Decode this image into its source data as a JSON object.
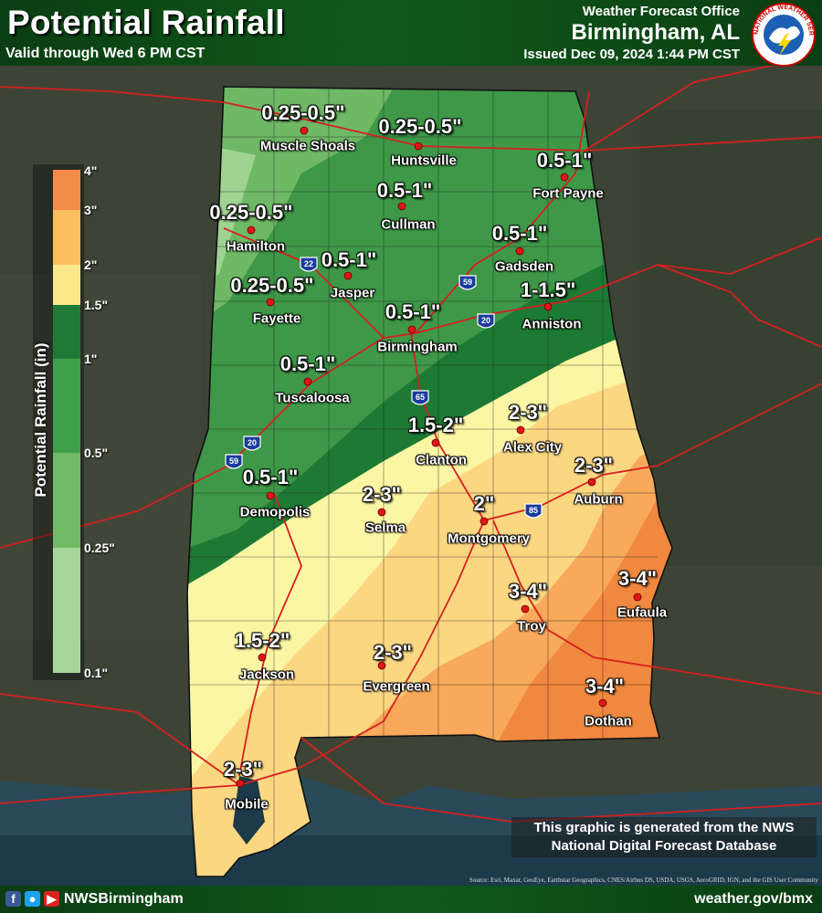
{
  "header": {
    "title": "Potential Rainfall",
    "valid": "Valid through Wed 6 PM CST",
    "office_label": "Weather Forecast Office",
    "office": "Birmingham, AL",
    "issued": "Issued Dec 09, 2024 1:44 PM CST"
  },
  "legend": {
    "title": "Potential Rainfall (in)",
    "ticks": [
      "4\"",
      "3\"",
      "2\"",
      "1.5\"",
      "1\"",
      "0.5\"",
      "0.25\"",
      "0.1\""
    ],
    "colors": [
      "#f28c4a",
      "#fbbf5f",
      "#fbe88a",
      "#fdfaa8",
      "#1f7a36",
      "#3ea04a",
      "#72b968",
      "#a6d699"
    ]
  },
  "cities": [
    {
      "name": "Muscle Shoals",
      "amount": "0.25-0.5\""
    },
    {
      "name": "Huntsville",
      "amount": "0.25-0.5\""
    },
    {
      "name": "Fort Payne",
      "amount": "0.5-1\""
    },
    {
      "name": "Cullman",
      "amount": "0.5-1\""
    },
    {
      "name": "Hamilton",
      "amount": "0.25-0.5\""
    },
    {
      "name": "Gadsden",
      "amount": "0.5-1\""
    },
    {
      "name": "Jasper",
      "amount": "0.5-1\""
    },
    {
      "name": "Fayette",
      "amount": "0.25-0.5\""
    },
    {
      "name": "Anniston",
      "amount": "1-1.5\""
    },
    {
      "name": "Birmingham",
      "amount": "0.5-1\""
    },
    {
      "name": "Tuscaloosa",
      "amount": "0.5-1\""
    },
    {
      "name": "Alex City",
      "amount": "2-3\""
    },
    {
      "name": "Clanton",
      "amount": "1.5-2\""
    },
    {
      "name": "Auburn",
      "amount": "2-3\""
    },
    {
      "name": "Demopolis",
      "amount": "0.5-1\""
    },
    {
      "name": "Selma",
      "amount": "2-3\""
    },
    {
      "name": "Montgomery",
      "amount": "2\""
    },
    {
      "name": "Eufaula",
      "amount": "3-4\""
    },
    {
      "name": "Troy",
      "amount": "3-4\""
    },
    {
      "name": "Jackson",
      "amount": "1.5-2\""
    },
    {
      "name": "Evergreen",
      "amount": "2-3\""
    },
    {
      "name": "Dothan",
      "amount": "3-4\""
    },
    {
      "name": "Mobile",
      "amount": "2-3\""
    }
  ],
  "interstates": [
    "22",
    "59",
    "20",
    "65",
    "20",
    "59",
    "85"
  ],
  "logo_text": "NATIONAL WEATHER SERVICE",
  "note": "This graphic is generated from the NWS National Digital Forecast Database",
  "source": "Source: Esri, Maxar, GeoEye, Earthstar Geographics, CNES/Airbus DS, USDA, USGS, AeroGRID, IGN, and the GIS User Community",
  "footer": {
    "handle": "NWSBirmingham",
    "url": "weather.gov/bmx"
  }
}
